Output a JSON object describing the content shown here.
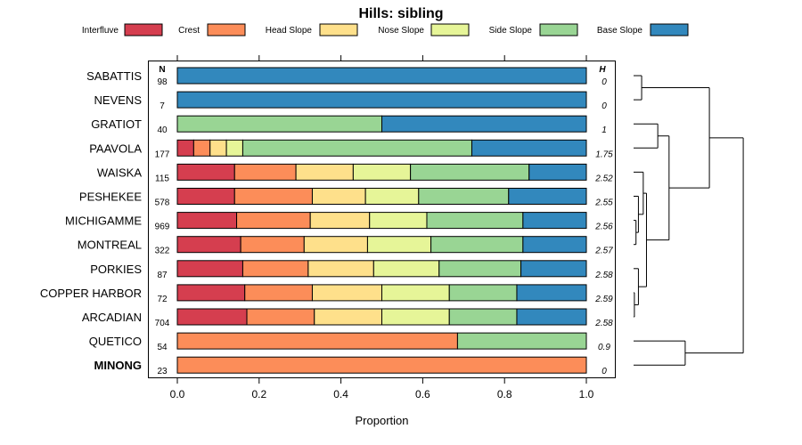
{
  "chart_data": {
    "type": "stacked-horizontal-bar",
    "title": "Hills: sibling",
    "xlabel": "Proportion",
    "xlim": [
      0,
      1
    ],
    "xticks": [
      "0.0",
      "0.2",
      "0.4",
      "0.6",
      "0.8",
      "1.0"
    ],
    "xtick_values": [
      0,
      0.2,
      0.4,
      0.6,
      0.8,
      1.0
    ],
    "n_header": "N",
    "h_header": "H",
    "legend": [
      {
        "name": "Interfluve",
        "color": "#D53E4F"
      },
      {
        "name": "Crest",
        "color": "#FC8D59"
      },
      {
        "name": "Head Slope",
        "color": "#FEE08B"
      },
      {
        "name": "Nose Slope",
        "color": "#E6F598"
      },
      {
        "name": "Side Slope",
        "color": "#99D594"
      },
      {
        "name": "Base Slope",
        "color": "#3288BD"
      }
    ],
    "rows": [
      {
        "label": "SABATTIS",
        "n": "98",
        "h": "0",
        "bold": false,
        "values": [
          0,
          0,
          0,
          0,
          0,
          1.0
        ]
      },
      {
        "label": "NEVENS",
        "n": "7",
        "h": "0",
        "bold": false,
        "values": [
          0,
          0,
          0,
          0,
          0,
          1.0
        ]
      },
      {
        "label": "GRATIOT",
        "n": "40",
        "h": "1",
        "bold": false,
        "values": [
          0,
          0,
          0,
          0,
          0.5,
          0.5
        ]
      },
      {
        "label": "PAAVOLA",
        "n": "177",
        "h": "1.75",
        "bold": false,
        "values": [
          0.04,
          0.04,
          0.04,
          0.04,
          0.56,
          0.28
        ]
      },
      {
        "label": "WAISKA",
        "n": "115",
        "h": "2.52",
        "bold": false,
        "values": [
          0.14,
          0.15,
          0.14,
          0.14,
          0.29,
          0.14
        ]
      },
      {
        "label": "PESHEKEE",
        "n": "578",
        "h": "2.55",
        "bold": false,
        "values": [
          0.14,
          0.19,
          0.13,
          0.13,
          0.22,
          0.19
        ]
      },
      {
        "label": "MICHIGAMME",
        "n": "969",
        "h": "2.56",
        "bold": false,
        "values": [
          0.145,
          0.18,
          0.145,
          0.14,
          0.235,
          0.155
        ]
      },
      {
        "label": "MONTREAL",
        "n": "322",
        "h": "2.57",
        "bold": false,
        "values": [
          0.155,
          0.155,
          0.155,
          0.155,
          0.225,
          0.155
        ]
      },
      {
        "label": "PORKIES",
        "n": "87",
        "h": "2.58",
        "bold": false,
        "values": [
          0.16,
          0.16,
          0.16,
          0.16,
          0.2,
          0.16
        ]
      },
      {
        "label": "COPPER HARBOR",
        "n": "72",
        "h": "2.59",
        "bold": false,
        "values": [
          0.165,
          0.165,
          0.17,
          0.165,
          0.165,
          0.17
        ]
      },
      {
        "label": "ARCADIAN",
        "n": "704",
        "h": "2.58",
        "bold": false,
        "values": [
          0.17,
          0.165,
          0.165,
          0.165,
          0.165,
          0.17
        ]
      },
      {
        "label": "QUETICO",
        "n": "54",
        "h": "0.9",
        "bold": false,
        "values": [
          0,
          0.685,
          0,
          0,
          0.315,
          0
        ]
      },
      {
        "label": "MINONG",
        "n": "23",
        "h": "0",
        "bold": true,
        "values": [
          0,
          1.0,
          0,
          0,
          0,
          0
        ]
      }
    ],
    "dendrogram": {
      "orientation": "right",
      "merges": [
        {
          "rows": [
            "SABATTIS",
            "NEVENS"
          ],
          "height": 0.05
        },
        {
          "rows": [
            "WAISKA",
            "PESHEKEE",
            "MICHIGAMME",
            "MONTREAL"
          ],
          "height": 0.06
        },
        {
          "rows": [
            "PORKIES",
            "COPPER HARBOR",
            "ARCADIAN"
          ],
          "height": 0.03
        },
        {
          "rows": [
            "QUETICO",
            "MINONG"
          ],
          "height": 0.22
        },
        {
          "rows": [
            "GRATIOT",
            "PAAVOLA",
            "WAISKA-ARCADIAN"
          ],
          "height": 0.22
        },
        {
          "rows": [
            "SABATTIS-NEVENS",
            "GRATIOT-ARCADIAN"
          ],
          "height": 0.47
        },
        {
          "rows": [
            "ALL"
          ],
          "height": 0.68
        }
      ]
    }
  }
}
